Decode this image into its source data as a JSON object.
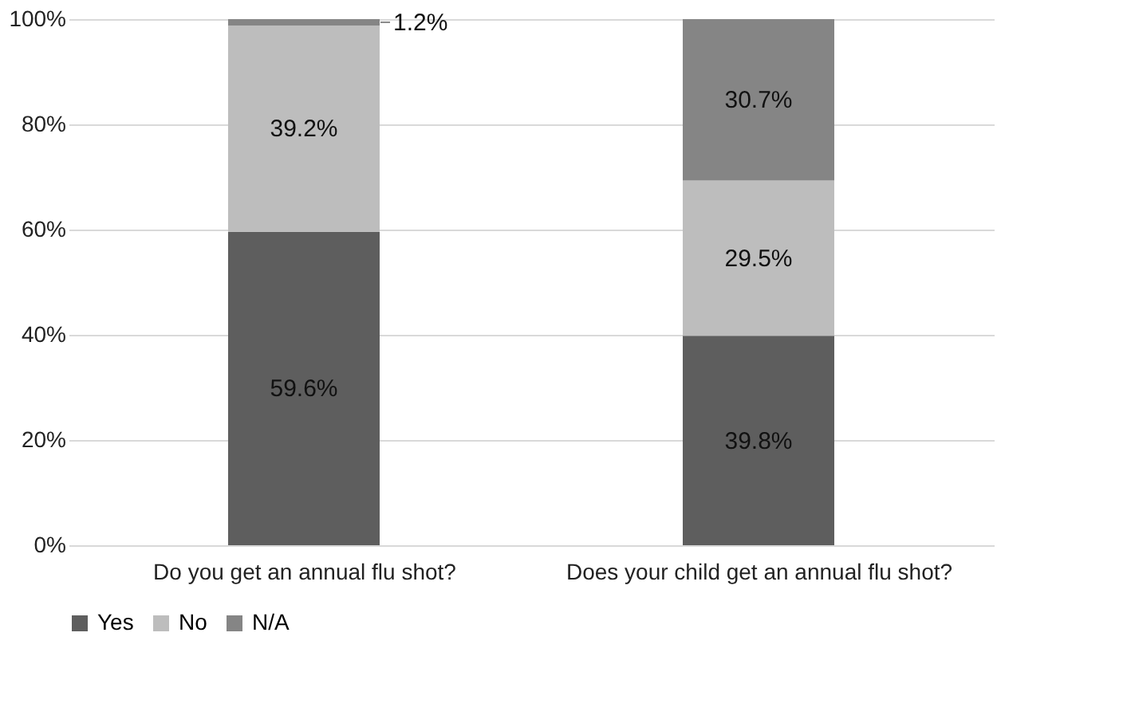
{
  "chart_data": {
    "type": "bar",
    "stacked": true,
    "categories": [
      "Do you get an annual flu shot?",
      "Does your child get an annual flu shot?"
    ],
    "series": [
      {
        "name": "Yes",
        "color": "#5e5e5e",
        "values": [
          59.6,
          39.8
        ],
        "value_labels": [
          "59.6%",
          "39.8%"
        ]
      },
      {
        "name": "No",
        "color": "#bdbdbd",
        "values": [
          39.2,
          29.5
        ],
        "value_labels": [
          "39.2%",
          "29.5%"
        ]
      },
      {
        "name": "N/A",
        "color": "#858585",
        "values": [
          1.2,
          30.7
        ],
        "value_labels": [
          "1.2%",
          "30.7%"
        ]
      }
    ],
    "ylim": [
      0,
      100
    ],
    "yticks": [
      {
        "value": 0,
        "label": "0%"
      },
      {
        "value": 20,
        "label": "20%"
      },
      {
        "value": 40,
        "label": "40%"
      },
      {
        "value": 60,
        "label": "60%"
      },
      {
        "value": 80,
        "label": "80%"
      },
      {
        "value": 100,
        "label": "100%"
      }
    ],
    "grid": "y",
    "legend": "bottom"
  }
}
